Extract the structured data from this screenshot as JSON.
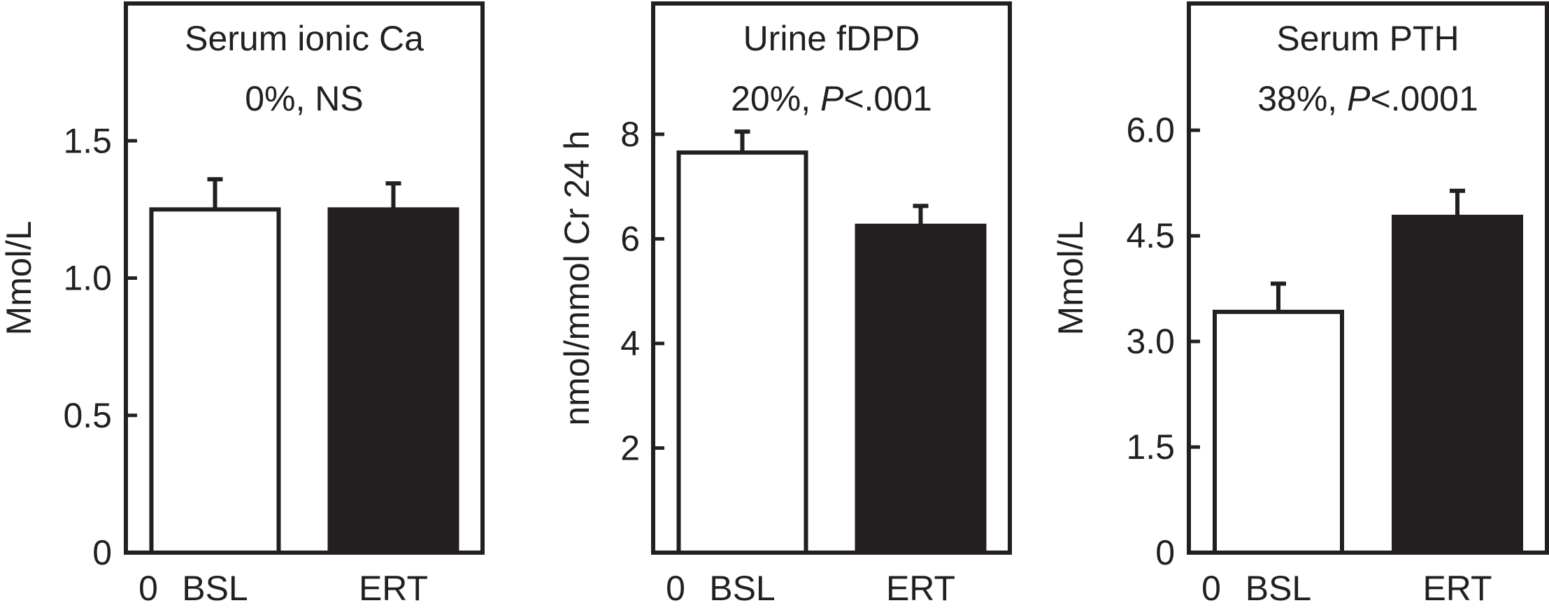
{
  "chart_data": [
    {
      "type": "bar",
      "title": "Serum ionic Ca",
      "annotation": "0%, NS",
      "annotation_italic": "",
      "annotation_tail": "",
      "ylabel": "Mmol/L",
      "origin_label": "0",
      "categories": [
        "BSL",
        "ERT"
      ],
      "values": [
        1.25,
        1.25
      ],
      "errors": [
        0.11,
        0.095
      ],
      "ylim": [
        0,
        2.0
      ],
      "yticks": [
        0,
        0.5,
        1.0,
        1.5
      ],
      "ytick_labels": [
        "0",
        "0.5",
        "1.0",
        "1.5"
      ],
      "bar_fills": [
        "#ffffff",
        "#231f20"
      ]
    },
    {
      "type": "bar",
      "title": "Urine fDPD",
      "annotation": "20%, ",
      "annotation_italic": "P",
      "annotation_tail": "<.001",
      "ylabel": "nmol/mmol Cr 24 h",
      "origin_label": "0",
      "categories": [
        "BSL",
        "ERT"
      ],
      "values": [
        7.65,
        6.25
      ],
      "errors": [
        0.4,
        0.38
      ],
      "ylim": [
        0,
        10.5
      ],
      "yticks": [
        2,
        4,
        6,
        8
      ],
      "ytick_labels": [
        "2",
        "4",
        "6",
        "8"
      ],
      "bar_fills": [
        "#ffffff",
        "#231f20"
      ]
    },
    {
      "type": "bar",
      "title": "Serum PTH",
      "annotation": "38%, ",
      "annotation_italic": "P",
      "annotation_tail": "<.0001",
      "ylabel": "Mmol/L",
      "origin_label": "0",
      "categories": [
        "BSL",
        "ERT"
      ],
      "values": [
        3.42,
        4.77
      ],
      "errors": [
        0.4,
        0.37
      ],
      "ylim": [
        0,
        7.8
      ],
      "yticks": [
        0,
        1.5,
        3.0,
        4.5,
        6.0
      ],
      "ytick_labels": [
        "0",
        "1.5",
        "3.0",
        "4.5",
        "6.0"
      ],
      "bar_fills": [
        "#ffffff",
        "#231f20"
      ]
    }
  ]
}
